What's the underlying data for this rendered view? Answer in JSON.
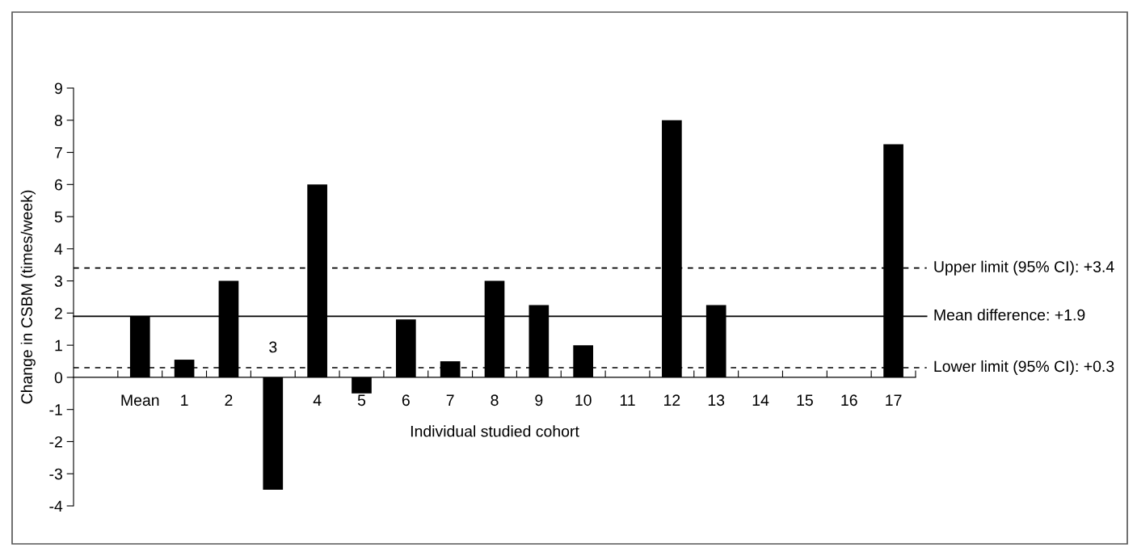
{
  "chart_data": {
    "type": "bar",
    "xlabel": "Individual studied cohort",
    "ylabel": "Change in CSBM (times/week)",
    "categories": [
      "Mean",
      "1",
      "2",
      "3",
      "4",
      "5",
      "6",
      "7",
      "8",
      "9",
      "10",
      "11",
      "12",
      "13",
      "14",
      "15",
      "16",
      "17"
    ],
    "values": [
      1.9,
      0.55,
      3.0,
      -3.5,
      6.0,
      -0.5,
      1.8,
      0.5,
      3.0,
      2.25,
      1.0,
      null,
      8.0,
      2.25,
      null,
      null,
      null,
      7.25
    ],
    "color": "#000000",
    "ylim": [
      -4,
      9
    ],
    "yticks": [
      -4,
      -3,
      -2,
      -1,
      0,
      1,
      2,
      3,
      4,
      5,
      6,
      7,
      8,
      9
    ],
    "ref_lines": [
      {
        "axis": "y",
        "value": 3.4,
        "label": "Upper limit (95% CI): +3.4",
        "line_style": "dashed",
        "color": "#000000"
      },
      {
        "axis": "y",
        "value": 1.9,
        "label": "Mean difference: +1.9",
        "line_style": "solid",
        "color": "#000000"
      },
      {
        "axis": "y",
        "value": 0.3,
        "label": "Lower limit (95% CI): +0.3",
        "line_style": "dashed",
        "color": "#000000"
      }
    ],
    "grid": false
  }
}
